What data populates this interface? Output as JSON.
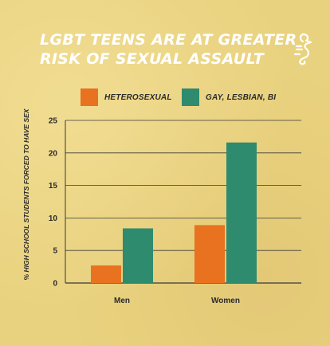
{
  "header": {
    "title_line1": "LGBT TEENS ARE AT GREATER",
    "title_line2": "RISK OF SEXUAL ASSAULT"
  },
  "logo": {
    "icon": "seahorse-icon",
    "color": "#ffffff"
  },
  "colors": {
    "heterosexual": "#e8721f",
    "glb": "#2e8b6e",
    "text": "#2b2b2b",
    "grid": "#3a3a3a"
  },
  "chart_data": {
    "type": "bar",
    "categories": [
      "Men",
      "Women"
    ],
    "series": [
      {
        "name": "HETEROSEXUAL",
        "values": [
          2.7,
          8.9
        ]
      },
      {
        "name": "GAY, LESBIAN, BI",
        "values": [
          8.4,
          21.6
        ]
      }
    ],
    "ylabel": "% HIGH SCHOOL STUDENTS FORCED TO HAVE SEX",
    "xlabel": "",
    "ylim": [
      0,
      25
    ],
    "yticks": [
      0,
      5,
      10,
      15,
      20,
      25
    ],
    "grid": true,
    "legend": "top"
  }
}
